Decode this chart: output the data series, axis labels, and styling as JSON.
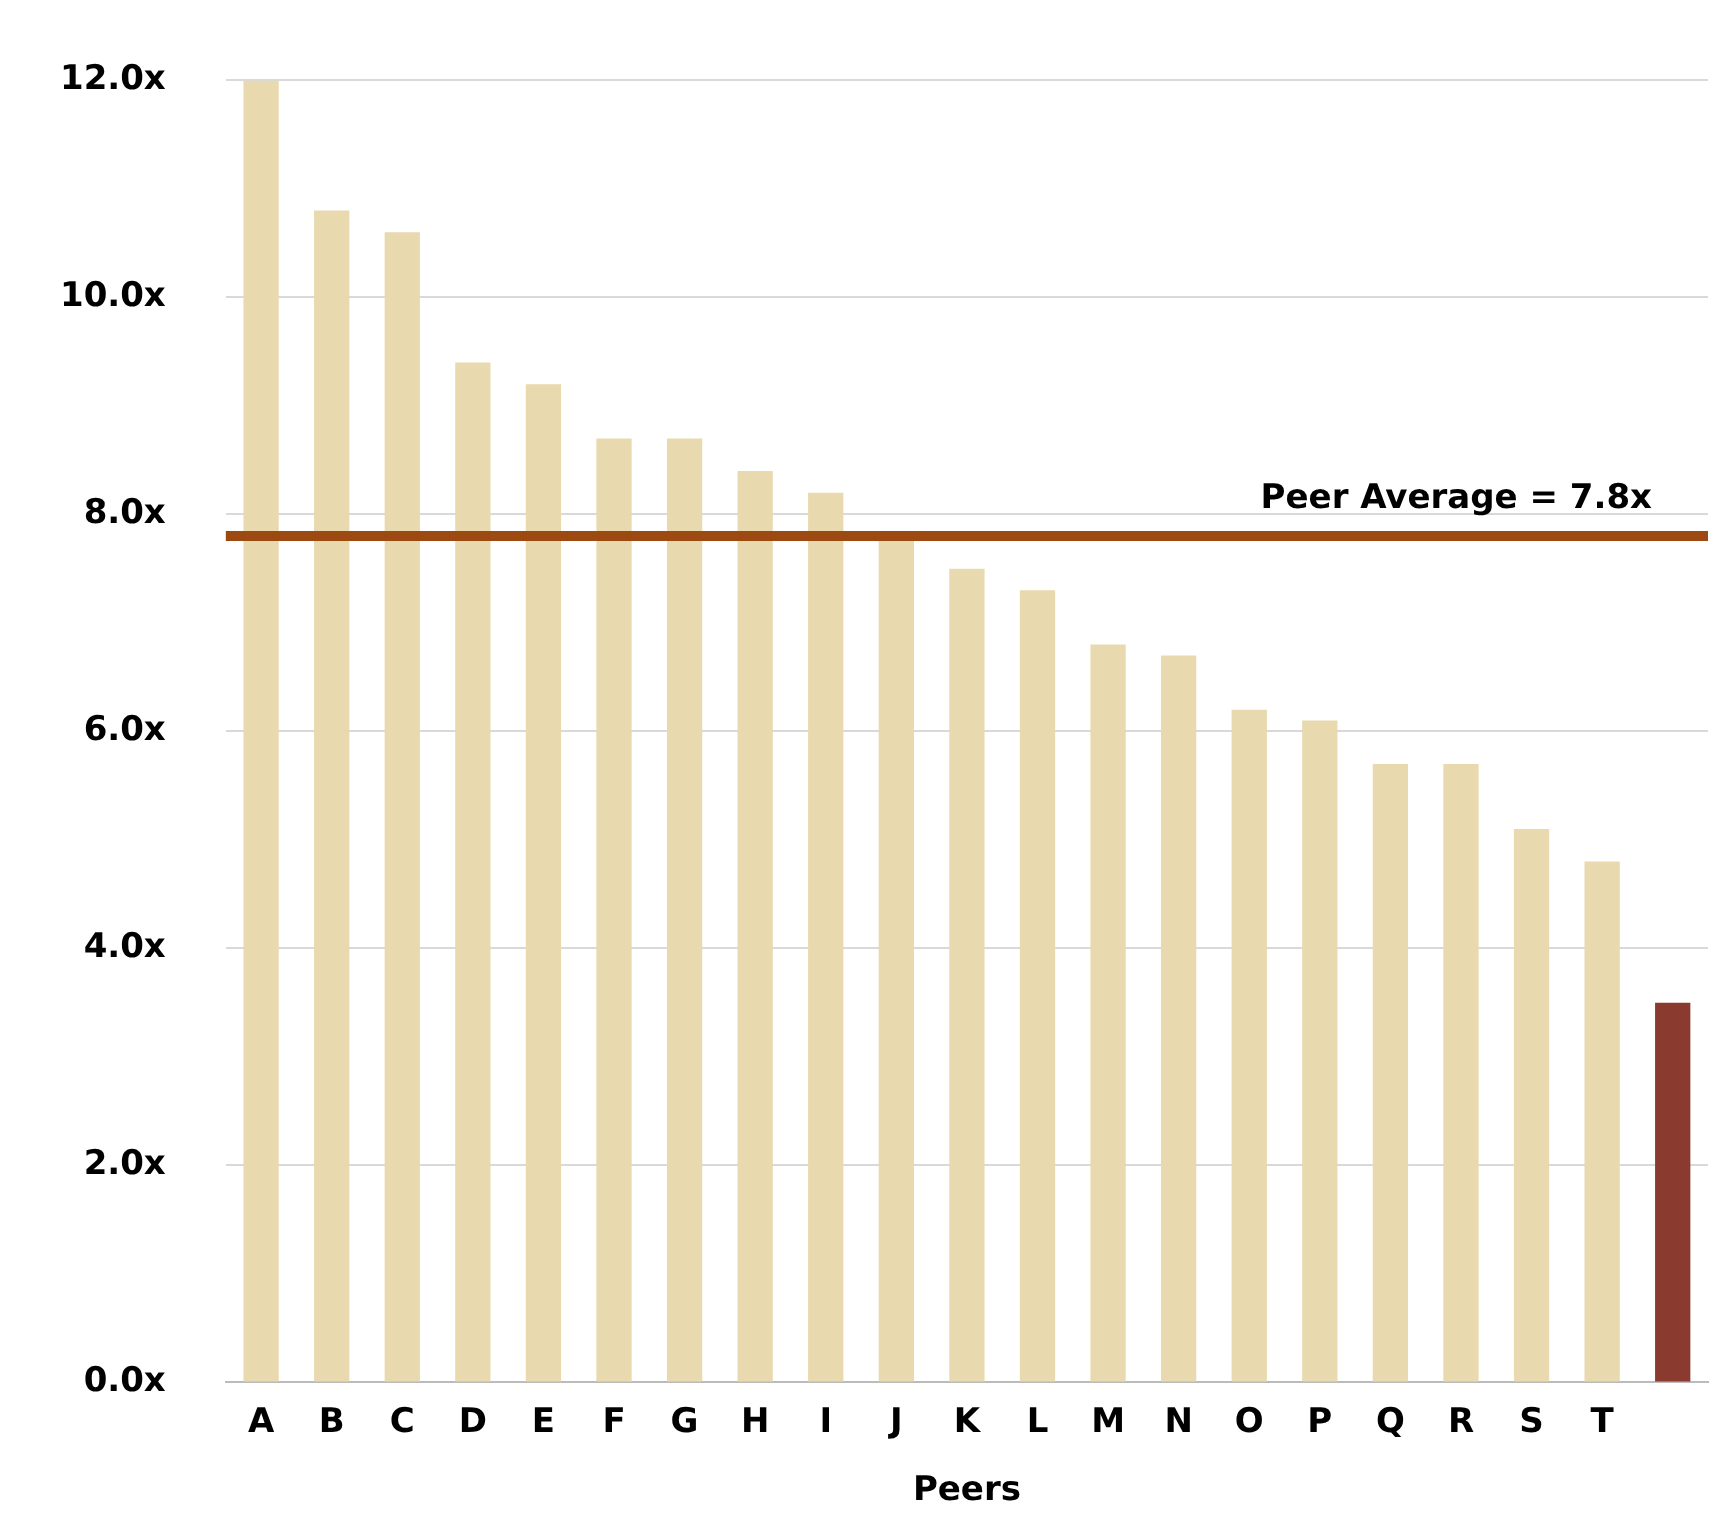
{
  "chart_data": {
    "type": "bar",
    "xlabel": "Peers",
    "categories": [
      "A",
      "B",
      "C",
      "D",
      "E",
      "F",
      "G",
      "H",
      "I",
      "J",
      "K",
      "L",
      "M",
      "N",
      "O",
      "P",
      "Q",
      "R",
      "S",
      "T",
      null
    ],
    "values": [
      12.0,
      10.8,
      10.6,
      9.4,
      9.2,
      8.7,
      8.7,
      8.4,
      8.2,
      7.8,
      7.5,
      7.3,
      6.8,
      6.7,
      6.2,
      6.1,
      5.7,
      5.7,
      5.1,
      4.8,
      3.5
    ],
    "colors": [
      "#e8d9ae",
      "#e8d9ae",
      "#e8d9ae",
      "#e8d9ae",
      "#e8d9ae",
      "#e8d9ae",
      "#e8d9ae",
      "#e8d9ae",
      "#e8d9ae",
      "#e8d9ae",
      "#e8d9ae",
      "#e8d9ae",
      "#e8d9ae",
      "#e8d9ae",
      "#e8d9ae",
      "#e8d9ae",
      "#e8d9ae",
      "#e8d9ae",
      "#e8d9ae",
      "#e8d9ae",
      "#8b3a2f"
    ],
    "ylim": [
      0,
      12
    ],
    "yticks": [
      {
        "value": 0,
        "label": "0.0x"
      },
      {
        "value": 2,
        "label": "2.0x"
      },
      {
        "value": 4,
        "label": "4.0x"
      },
      {
        "value": 6,
        "label": "6.0x"
      },
      {
        "value": 8,
        "label": "8.0x"
      },
      {
        "value": 10,
        "label": "10.0x"
      },
      {
        "value": 12,
        "label": "12.0x"
      }
    ],
    "ref_lines": [
      {
        "axis": "y",
        "value": 7.8,
        "label": "Peer Average = 7.8x",
        "color": "#9c4a12"
      }
    ],
    "grid": "y",
    "legend": false
  }
}
